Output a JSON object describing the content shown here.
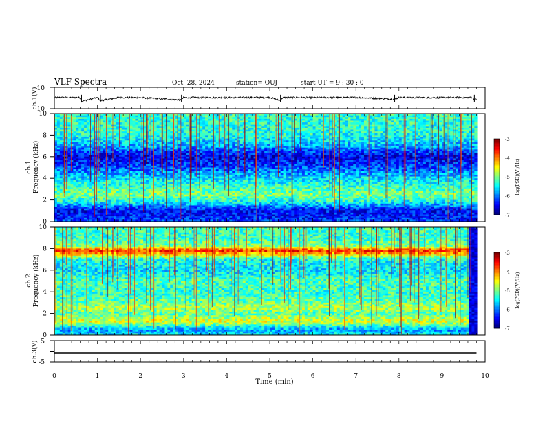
{
  "header": {
    "title": "VLF Spectra",
    "date": "Oct. 28, 2024",
    "station": "station= OUJ",
    "start": "start  UT =   9  : 30 : 0"
  },
  "chart_data": [
    {
      "type": "line",
      "ylabel": "ch.1(V)",
      "ylim": [
        -10,
        10
      ],
      "yticks": [
        "10",
        "-10"
      ],
      "x": [
        0,
        0.5,
        0.6,
        0.63,
        1,
        1.07,
        1.5,
        2,
        2.95,
        3,
        4,
        5,
        5.25,
        5.3,
        6,
        7,
        7.9,
        8,
        9,
        9.7,
        9.75
      ],
      "values": [
        0.4,
        0.5,
        0.3,
        -3,
        0.2,
        -2.5,
        0.4,
        0.3,
        -1.8,
        0.4,
        0.3,
        0.5,
        -2.5,
        0.4,
        0.3,
        0.5,
        -1.2,
        0.4,
        0.3,
        0.5,
        -1.5
      ],
      "grid": false
    },
    {
      "type": "heatmap",
      "ylabel": "ch.1\nFrequency (kHz)",
      "ylim": [
        0,
        10
      ],
      "yticks": [
        "10",
        "8",
        "6",
        "4",
        "2",
        "0"
      ],
      "colorbar": {
        "label": "log(PSD)(V²/Hz)",
        "ticks": [
          "-3",
          "-4",
          "-5",
          "-6",
          "-7"
        ],
        "range": [
          -7,
          -3
        ]
      },
      "profile": {
        "freq_khz": [
          0,
          1,
          2,
          2.5,
          3,
          4,
          5,
          6,
          7,
          8,
          10
        ],
        "log_psd": [
          -6.3,
          -6.5,
          -5.3,
          -5.0,
          -5.2,
          -5.6,
          -6.2,
          -6.6,
          -5.8,
          -5.4,
          -5.3
        ]
      }
    },
    {
      "type": "heatmap",
      "ylabel": "ch.2\nFrequency (kHz)",
      "ylim": [
        0,
        10
      ],
      "yticks": [
        "10",
        "8",
        "6",
        "4",
        "2",
        "0"
      ],
      "colorbar": {
        "label": "log(PSD)(V²/Hz)",
        "ticks": [
          "-3",
          "-4",
          "-5",
          "-6",
          "-7"
        ],
        "range": [
          -7,
          -3
        ]
      },
      "profile": {
        "freq_khz": [
          0,
          0.5,
          1,
          1.3,
          2,
          2.5,
          3,
          4,
          5,
          6,
          7,
          7.8,
          8.2,
          9,
          10
        ],
        "log_psd": [
          -5.5,
          -5.9,
          -5.0,
          -4.6,
          -5.2,
          -4.8,
          -5.1,
          -5.3,
          -5.2,
          -5.6,
          -5.4,
          -3.6,
          -5.0,
          -5.3,
          -5.2
        ]
      }
    },
    {
      "type": "line",
      "ylabel": "ch.3(V)",
      "ylim": [
        -5,
        5
      ],
      "yticks": [
        "5",
        "0",
        "-5"
      ],
      "x": [
        0,
        9.8
      ],
      "values": [
        -0.8,
        -0.8
      ],
      "xlabel": "Time  (min)",
      "xticks": [
        "0",
        "1",
        "2",
        "3",
        "4",
        "5",
        "6",
        "7",
        "8",
        "9",
        "10"
      ],
      "xlim": [
        0,
        10
      ]
    }
  ]
}
